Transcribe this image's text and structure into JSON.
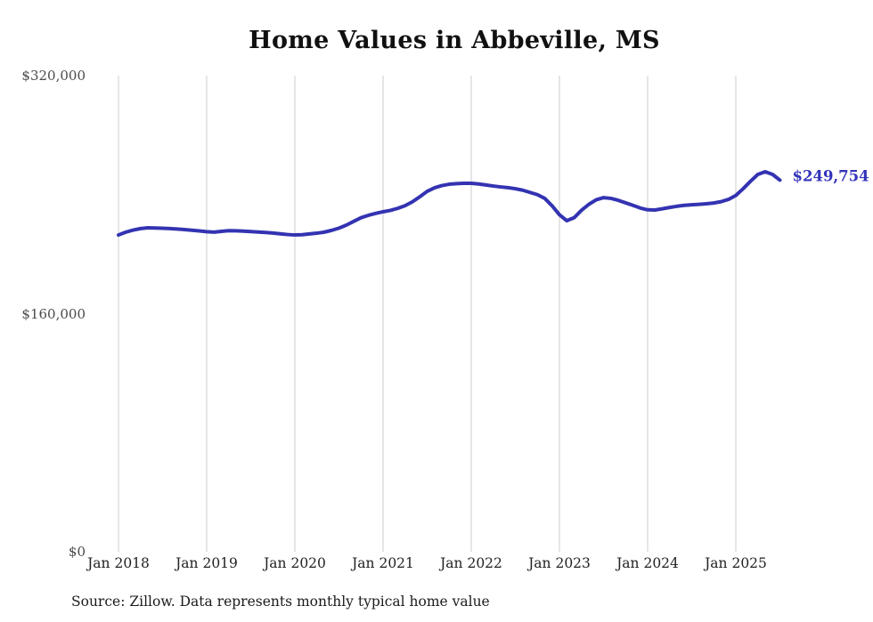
{
  "title": "Home Values in Abbeville, MS",
  "source_note": "Source: Zillow. Data represents monthly typical home value",
  "end_label": "$249,754",
  "colors": {
    "line": "#3333b2",
    "end_label": "#3333bb",
    "grid": "#cccccc",
    "y_tick_text": "#4a4a4a",
    "x_tick_text": "#222222",
    "title_text": "#111111",
    "source_text": "#1b1b1b",
    "background": "#ffffff"
  },
  "chart_data": {
    "type": "line",
    "title": "Home Values in Abbeville, MS",
    "series_name": "Monthly typical home value",
    "x_start": "Jan 2018",
    "x_end": "Jul 2025",
    "x_tick_labels": [
      "Jan 2018",
      "Jan 2019",
      "Jan 2020",
      "Jan 2021",
      "Jan 2022",
      "Jan 2023",
      "Jan 2024",
      "Jan 2025"
    ],
    "x_tick_indices": [
      0,
      12,
      24,
      36,
      48,
      60,
      72,
      84
    ],
    "y_tick_labels": [
      "$0",
      "$160,000",
      "$320,000"
    ],
    "y_tick_values": [
      0,
      160000,
      320000
    ],
    "ylim": [
      0,
      320000
    ],
    "grid": "vertical-only",
    "legend": "none",
    "latest_value": 249754,
    "values": [
      212900,
      214800,
      216200,
      217200,
      217700,
      217600,
      217400,
      217200,
      216900,
      216500,
      216100,
      215600,
      215100,
      214800,
      215300,
      215800,
      215700,
      215500,
      215200,
      214900,
      214600,
      214200,
      213700,
      213200,
      212900,
      213100,
      213600,
      214100,
      214800,
      216000,
      217500,
      219500,
      222000,
      224500,
      226100,
      227400,
      228500,
      229400,
      230800,
      232600,
      235200,
      238600,
      242200,
      244600,
      246100,
      247000,
      247400,
      247600,
      247600,
      247200,
      246500,
      245800,
      245200,
      244700,
      244000,
      243000,
      241500,
      240000,
      237500,
      232500,
      226500,
      222500,
      224500,
      229500,
      233500,
      236500,
      238000,
      237500,
      236200,
      234500,
      232800,
      231000,
      229800,
      229700,
      230500,
      231400,
      232200,
      232800,
      233200,
      233500,
      233900,
      234400,
      235300,
      236800,
      239500,
      244000,
      249000,
      253600,
      255400,
      253600,
      249754
    ]
  }
}
